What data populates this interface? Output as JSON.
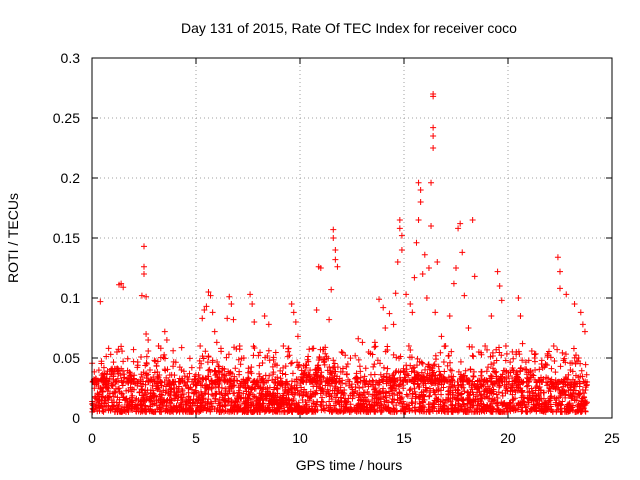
{
  "chart_data": {
    "type": "scatter",
    "title": "Day 131 of 2015, Rate Of TEC Index for receiver coco",
    "xlabel": "GPS time / hours",
    "ylabel": "ROTI / TECUs",
    "xlim": [
      0,
      25
    ],
    "ylim": [
      0,
      0.3
    ],
    "xticks": [
      0,
      5,
      10,
      15,
      20,
      25
    ],
    "yticks": [
      0,
      0.05,
      0.1,
      0.15,
      0.2,
      0.25,
      0.3
    ],
    "xtick_labels": [
      "0",
      "5",
      "10",
      "15",
      "20",
      "25"
    ],
    "ytick_labels": [
      "0",
      "0.05",
      "0.1",
      "0.15",
      "0.2",
      "0.25",
      "0.3"
    ],
    "grid": true,
    "marker": "+",
    "marker_color": "#ff0000",
    "x_data_range": [
      0,
      23.8
    ],
    "dense_band": [
      0.005,
      0.03
    ],
    "series": [
      {
        "name": "ROTI",
        "points": [
          [
            0.1,
            0.031
          ],
          [
            0.2,
            0.028
          ],
          [
            0.4,
            0.097
          ],
          [
            0.7,
            0.033
          ],
          [
            0.8,
            0.058
          ],
          [
            0.9,
            0.053
          ],
          [
            1.2,
            0.055
          ],
          [
            1.3,
            0.111
          ],
          [
            1.4,
            0.112
          ],
          [
            1.5,
            0.109
          ],
          [
            1.8,
            0.038
          ],
          [
            2.0,
            0.047
          ],
          [
            2.2,
            0.044
          ],
          [
            2.4,
            0.102
          ],
          [
            2.5,
            0.143
          ],
          [
            2.5,
            0.126
          ],
          [
            2.5,
            0.12
          ],
          [
            2.6,
            0.101
          ],
          [
            2.6,
            0.07
          ],
          [
            2.7,
            0.065
          ],
          [
            3.0,
            0.048
          ],
          [
            3.2,
            0.06
          ],
          [
            3.5,
            0.072
          ],
          [
            3.6,
            0.065
          ],
          [
            3.9,
            0.056
          ],
          [
            4.3,
            0.04
          ],
          [
            4.8,
            0.042
          ],
          [
            5.2,
            0.06
          ],
          [
            5.3,
            0.083
          ],
          [
            5.4,
            0.09
          ],
          [
            5.5,
            0.093
          ],
          [
            5.6,
            0.105
          ],
          [
            5.7,
            0.102
          ],
          [
            5.8,
            0.088
          ],
          [
            5.9,
            0.072
          ],
          [
            6.0,
            0.063
          ],
          [
            6.2,
            0.058
          ],
          [
            6.5,
            0.083
          ],
          [
            6.6,
            0.101
          ],
          [
            6.7,
            0.095
          ],
          [
            6.8,
            0.082
          ],
          [
            7.1,
            0.06
          ],
          [
            7.3,
            0.05
          ],
          [
            7.6,
            0.103
          ],
          [
            7.7,
            0.095
          ],
          [
            7.8,
            0.08
          ],
          [
            8.0,
            0.052
          ],
          [
            8.3,
            0.085
          ],
          [
            8.5,
            0.078
          ],
          [
            8.8,
            0.045
          ],
          [
            9.2,
            0.06
          ],
          [
            9.6,
            0.095
          ],
          [
            9.7,
            0.088
          ],
          [
            9.8,
            0.08
          ],
          [
            9.9,
            0.068
          ],
          [
            10.4,
            0.047
          ],
          [
            10.8,
            0.09
          ],
          [
            10.9,
            0.126
          ],
          [
            11.0,
            0.125
          ],
          [
            11.1,
            0.057
          ],
          [
            11.4,
            0.082
          ],
          [
            11.5,
            0.107
          ],
          [
            11.6,
            0.157
          ],
          [
            11.6,
            0.15
          ],
          [
            11.7,
            0.14
          ],
          [
            11.7,
            0.132
          ],
          [
            11.8,
            0.126
          ],
          [
            12.0,
            0.055
          ],
          [
            12.3,
            0.045
          ],
          [
            12.8,
            0.066
          ],
          [
            13.0,
            0.063
          ],
          [
            13.3,
            0.055
          ],
          [
            13.6,
            0.063
          ],
          [
            13.8,
            0.099
          ],
          [
            14.0,
            0.092
          ],
          [
            14.1,
            0.075
          ],
          [
            14.3,
            0.087
          ],
          [
            14.5,
            0.078
          ],
          [
            14.6,
            0.104
          ],
          [
            14.7,
            0.13
          ],
          [
            14.8,
            0.165
          ],
          [
            14.8,
            0.158
          ],
          [
            14.9,
            0.152
          ],
          [
            14.9,
            0.14
          ],
          [
            15.1,
            0.103
          ],
          [
            15.3,
            0.095
          ],
          [
            15.4,
            0.088
          ],
          [
            15.5,
            0.117
          ],
          [
            15.6,
            0.146
          ],
          [
            15.7,
            0.165
          ],
          [
            15.7,
            0.196
          ],
          [
            15.8,
            0.19
          ],
          [
            15.8,
            0.18
          ],
          [
            15.9,
            0.12
          ],
          [
            16.0,
            0.136
          ],
          [
            16.1,
            0.1
          ],
          [
            16.2,
            0.125
          ],
          [
            16.3,
            0.16
          ],
          [
            16.3,
            0.196
          ],
          [
            16.4,
            0.225
          ],
          [
            16.4,
            0.235
          ],
          [
            16.4,
            0.242
          ],
          [
            16.4,
            0.268
          ],
          [
            16.4,
            0.27
          ],
          [
            16.5,
            0.088
          ],
          [
            16.6,
            0.13
          ],
          [
            16.8,
            0.068
          ],
          [
            17.0,
            0.06
          ],
          [
            17.2,
            0.085
          ],
          [
            17.4,
            0.112
          ],
          [
            17.5,
            0.125
          ],
          [
            17.6,
            0.158
          ],
          [
            17.7,
            0.162
          ],
          [
            17.8,
            0.138
          ],
          [
            17.9,
            0.102
          ],
          [
            18.1,
            0.075
          ],
          [
            18.3,
            0.165
          ],
          [
            18.4,
            0.118
          ],
          [
            18.6,
            0.055
          ],
          [
            18.9,
            0.06
          ],
          [
            19.2,
            0.085
          ],
          [
            19.5,
            0.122
          ],
          [
            19.6,
            0.11
          ],
          [
            19.7,
            0.098
          ],
          [
            19.9,
            0.06
          ],
          [
            20.2,
            0.04
          ],
          [
            20.5,
            0.1
          ],
          [
            20.6,
            0.085
          ],
          [
            20.7,
            0.062
          ],
          [
            21.0,
            0.048
          ],
          [
            21.3,
            0.04
          ],
          [
            21.8,
            0.045
          ],
          [
            22.2,
            0.06
          ],
          [
            22.4,
            0.134
          ],
          [
            22.5,
            0.122
          ],
          [
            22.5,
            0.108
          ],
          [
            22.8,
            0.103
          ],
          [
            23.0,
            0.04
          ],
          [
            23.2,
            0.095
          ],
          [
            23.4,
            0.05
          ],
          [
            23.5,
            0.088
          ],
          [
            23.6,
            0.078
          ],
          [
            23.7,
            0.072
          ],
          [
            23.8,
            0.03
          ]
        ]
      }
    ]
  }
}
